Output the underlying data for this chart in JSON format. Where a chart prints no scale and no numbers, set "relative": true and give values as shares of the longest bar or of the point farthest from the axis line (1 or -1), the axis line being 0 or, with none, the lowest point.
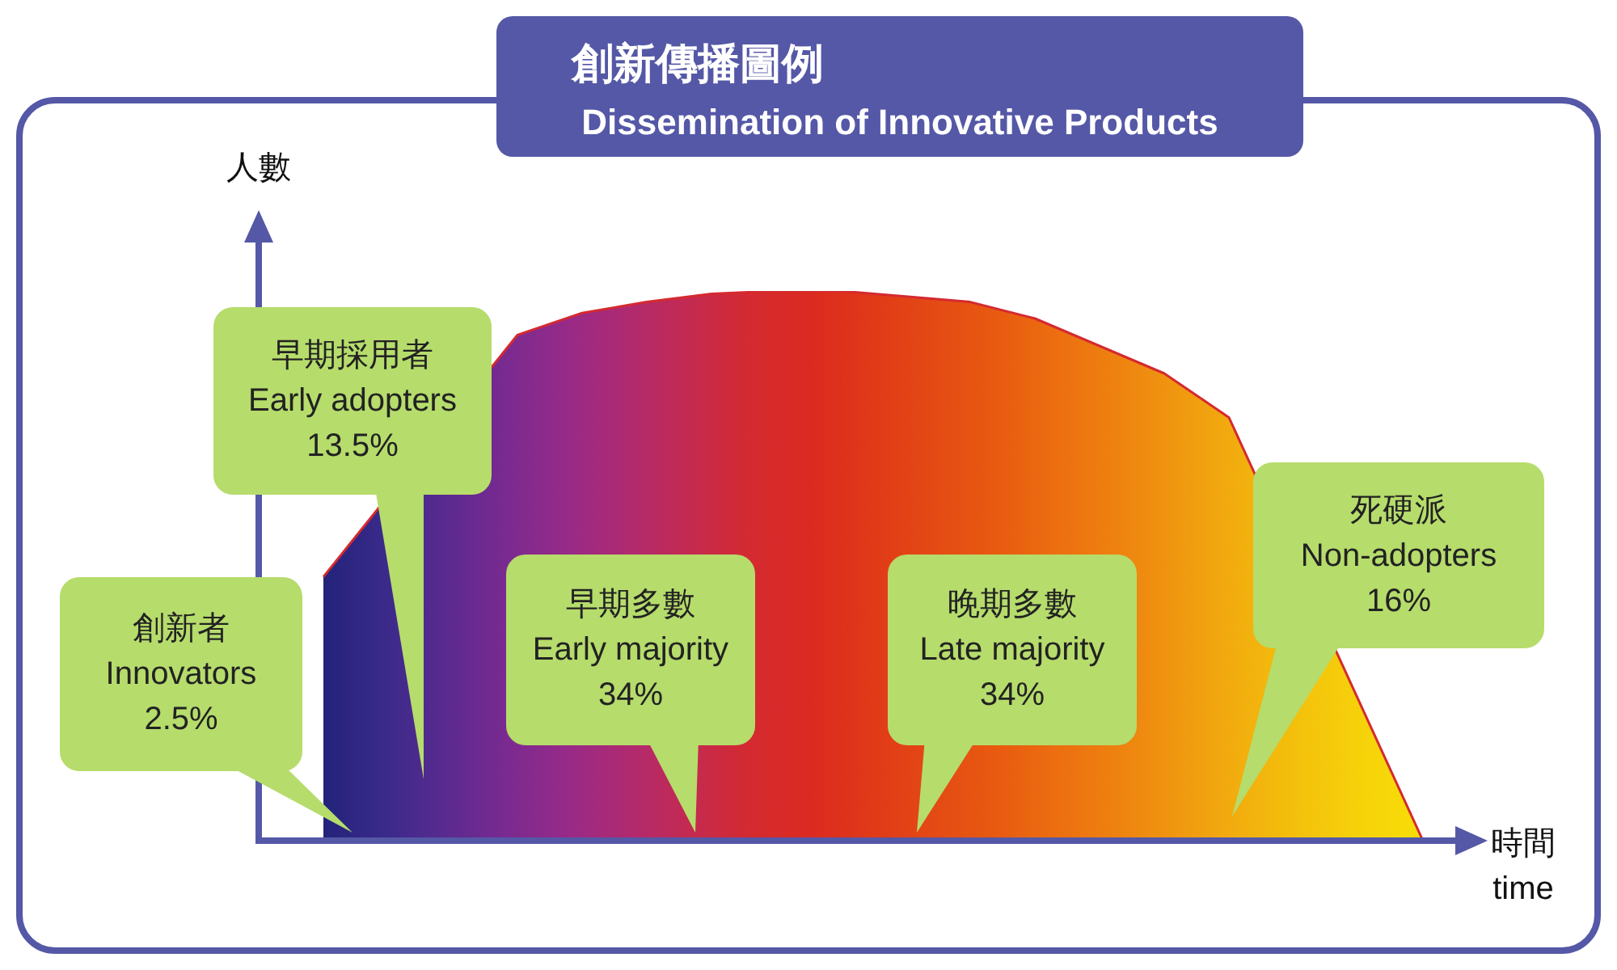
{
  "chart_data": {
    "type": "area",
    "title": "創新傳播圖例",
    "subtitle": "Dissemination of Innovative Products",
    "ylabel": "人數",
    "xlabel": "時間\ntime",
    "relative": true,
    "categories": [
      null,
      null,
      null,
      null,
      null,
      null,
      null,
      null,
      null,
      null,
      null,
      null,
      null,
      null,
      null,
      null,
      null,
      null,
      null
    ],
    "series": [
      {
        "color": "#d42a30",
        "values": [
          null,
          0.48,
          null,
          null,
          0.92,
          0.96,
          0.98,
          0.995,
          1,
          1,
          0.99,
          0.98,
          0.95,
          0.9,
          0.85,
          0.77,
          null,
          null,
          0
        ],
        "colors": [
          "#23237a",
          "#3a2a8a",
          "#5a2a90",
          "#7a2a90",
          "#982a88",
          "#b02a70",
          "#c42a50",
          "#d42a30",
          "#dc2a20",
          "#e03a18",
          "#e44a14",
          "#e85a10",
          "#ec6e10",
          "#ee8210",
          "#f09810",
          "#f2ae0e",
          "#f4c20c",
          "#f6d20a",
          "#f8de08"
        ]
      }
    ],
    "annotations": [
      "創新者\nInnovators\n2.5%",
      "早期採用者\nEarly adopters\n13.5%",
      "早期多數\nEarly majority\n34%",
      "晚期多數\nLate majority\n34%",
      "死硬派\nNon-adopters\n16%"
    ],
    "grid": false,
    "legend": false
  }
}
